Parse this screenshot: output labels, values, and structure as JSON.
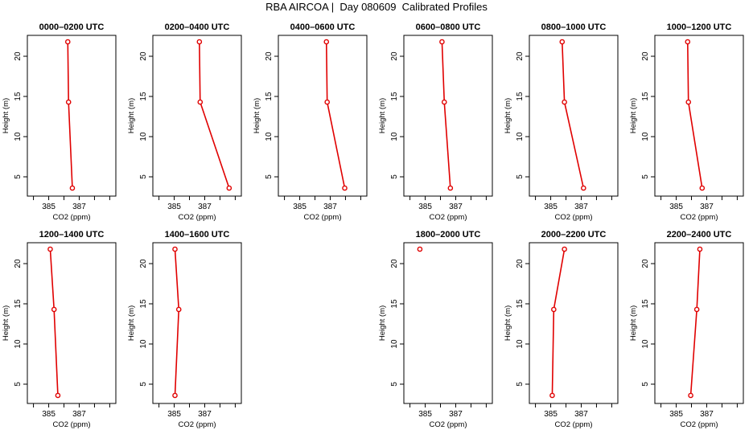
{
  "title": "RBA AIRCOA |  Day 080609  Calibrated Profiles",
  "colors": {
    "line": "#e00000",
    "frame": "#000000"
  },
  "chart_data": [
    {
      "type": "line",
      "title": "0000–0200 UTC",
      "xlabel": "CO2 (ppm)",
      "ylabel": "Height (m)",
      "x_ticks": [
        "385",
        "387"
      ],
      "y_ticks": [
        "5",
        "10",
        "15",
        "20"
      ],
      "series": [
        {
          "points": [
            [
              386.25,
              21.8
            ],
            [
              386.3,
              14.3
            ],
            [
              386.55,
              3.6
            ]
          ]
        }
      ]
    },
    {
      "type": "line",
      "title": "0200–0400 UTC",
      "xlabel": "CO2 (ppm)",
      "ylabel": "Height (m)",
      "x_ticks": [
        "385",
        "387"
      ],
      "y_ticks": [
        "5",
        "10",
        "15",
        "20"
      ],
      "series": [
        {
          "points": [
            [
              386.65,
              21.8
            ],
            [
              386.7,
              14.3
            ],
            [
              388.6,
              3.6
            ]
          ]
        }
      ]
    },
    {
      "type": "line",
      "title": "0400–0600 UTC",
      "xlabel": "CO2 (ppm)",
      "ylabel": "Height (m)",
      "x_ticks": [
        "385",
        "387"
      ],
      "y_ticks": [
        "5",
        "10",
        "15",
        "20"
      ],
      "series": [
        {
          "points": [
            [
              386.75,
              21.8
            ],
            [
              386.8,
              14.3
            ],
            [
              387.95,
              3.6
            ]
          ]
        }
      ]
    },
    {
      "type": "line",
      "title": "0600–0800 UTC",
      "xlabel": "CO2 (ppm)",
      "ylabel": "Height (m)",
      "x_ticks": [
        "385",
        "387"
      ],
      "y_ticks": [
        "5",
        "10",
        "15",
        "20"
      ],
      "series": [
        {
          "points": [
            [
              386.1,
              21.8
            ],
            [
              386.25,
              14.3
            ],
            [
              386.65,
              3.6
            ]
          ]
        }
      ]
    },
    {
      "type": "line",
      "title": "0800–1000 UTC",
      "xlabel": "CO2 (ppm)",
      "ylabel": "Height (m)",
      "x_ticks": [
        "385",
        "387"
      ],
      "y_ticks": [
        "5",
        "10",
        "15",
        "20"
      ],
      "series": [
        {
          "points": [
            [
              385.75,
              21.8
            ],
            [
              385.9,
              14.3
            ],
            [
              387.15,
              3.6
            ]
          ]
        }
      ]
    },
    {
      "type": "line",
      "title": "1000–1200 UTC",
      "xlabel": "CO2 (ppm)",
      "ylabel": "Height (m)",
      "x_ticks": [
        "385",
        "387"
      ],
      "y_ticks": [
        "5",
        "10",
        "15",
        "20"
      ],
      "series": [
        {
          "points": [
            [
              385.75,
              21.8
            ],
            [
              385.8,
              14.3
            ],
            [
              386.7,
              3.6
            ]
          ]
        }
      ]
    },
    {
      "type": "line",
      "title": "1200–1400 UTC",
      "xlabel": "CO2 (ppm)",
      "ylabel": "Height (m)",
      "x_ticks": [
        "385",
        "387"
      ],
      "y_ticks": [
        "5",
        "10",
        "15",
        "20"
      ],
      "series": [
        {
          "points": [
            [
              385.1,
              21.8
            ],
            [
              385.35,
              14.3
            ],
            [
              385.6,
              3.6
            ]
          ]
        }
      ]
    },
    {
      "type": "line",
      "title": "1400–1600 UTC",
      "xlabel": "CO2 (ppm)",
      "ylabel": "Height (m)",
      "x_ticks": [
        "385",
        "387"
      ],
      "y_ticks": [
        "5",
        "10",
        "15",
        "20"
      ],
      "series": [
        {
          "points": [
            [
              385.05,
              21.8
            ],
            [
              385.3,
              14.3
            ],
            [
              385.05,
              3.6
            ]
          ]
        }
      ]
    },
    null,
    {
      "type": "line",
      "title": "1800–2000 UTC",
      "xlabel": "CO2 (ppm)",
      "ylabel": "Height (m)",
      "x_ticks": [
        "385",
        "387"
      ],
      "y_ticks": [
        "5",
        "10",
        "15",
        "20"
      ],
      "series": [
        {
          "points": [
            [
              384.65,
              21.8
            ]
          ]
        }
      ]
    },
    {
      "type": "line",
      "title": "2000–2200 UTC",
      "xlabel": "CO2 (ppm)",
      "ylabel": "Height (m)",
      "x_ticks": [
        "385",
        "387"
      ],
      "y_ticks": [
        "5",
        "10",
        "15",
        "20"
      ],
      "series": [
        {
          "points": [
            [
              385.9,
              21.8
            ],
            [
              385.2,
              14.3
            ],
            [
              385.1,
              3.6
            ]
          ]
        }
      ]
    },
    {
      "type": "line",
      "title": "2200–2400 UTC",
      "xlabel": "CO2 (ppm)",
      "ylabel": "Height (m)",
      "x_ticks": [
        "385",
        "387"
      ],
      "y_ticks": [
        "5",
        "10",
        "15",
        "20"
      ],
      "series": [
        {
          "points": [
            [
              386.55,
              21.8
            ],
            [
              386.35,
              14.3
            ],
            [
              385.95,
              3.6
            ]
          ]
        }
      ]
    }
  ]
}
